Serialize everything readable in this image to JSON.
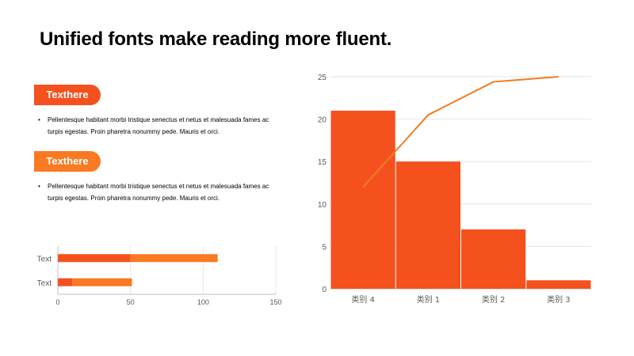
{
  "slide": {
    "title": "Unified fonts make reading more fluent.",
    "sections": [
      {
        "tag": "Texthere",
        "bullet": "Pellentesque habitant morbi tristique senectus et netus et malesuada fames ac turpis egestas. Proin pharetra nonummy pede. Mauris et orci."
      },
      {
        "tag": "Texthere",
        "bullet": "Pellentesque habitant morbi tristique senectus et netus et malesuada fames ac turpis egestas. Proin pharetra nonummy pede. Mauris et orci."
      }
    ],
    "bullet_symbol": "•"
  },
  "chart_data": [
    {
      "type": "bar",
      "orientation": "horizontal",
      "stacked": true,
      "categories": [
        "Text",
        "Text"
      ],
      "series": [
        {
          "values": [
            10,
            50
          ],
          "color": "#f4511e"
        },
        {
          "values": [
            41,
            60
          ],
          "color": "#f97a22"
        }
      ],
      "xlim": [
        0,
        150
      ],
      "xticks": [
        0,
        50,
        100,
        150
      ],
      "grid": true,
      "legend": "none"
    },
    {
      "type": "bar",
      "pareto": true,
      "categories": [
        "类别 4",
        "类别 1",
        "类别 2",
        "类别 3"
      ],
      "series": [
        {
          "type": "bar",
          "values": [
            21,
            15,
            7,
            1
          ],
          "color": "#f4511e"
        },
        {
          "type": "line",
          "values": [
            12,
            20.5,
            24.4,
            25
          ],
          "color": "#f47c20"
        }
      ],
      "ylim": [
        0,
        25
      ],
      "yticks": [
        0,
        5,
        10,
        15,
        20,
        25
      ],
      "grid": true,
      "legend": "none"
    }
  ]
}
